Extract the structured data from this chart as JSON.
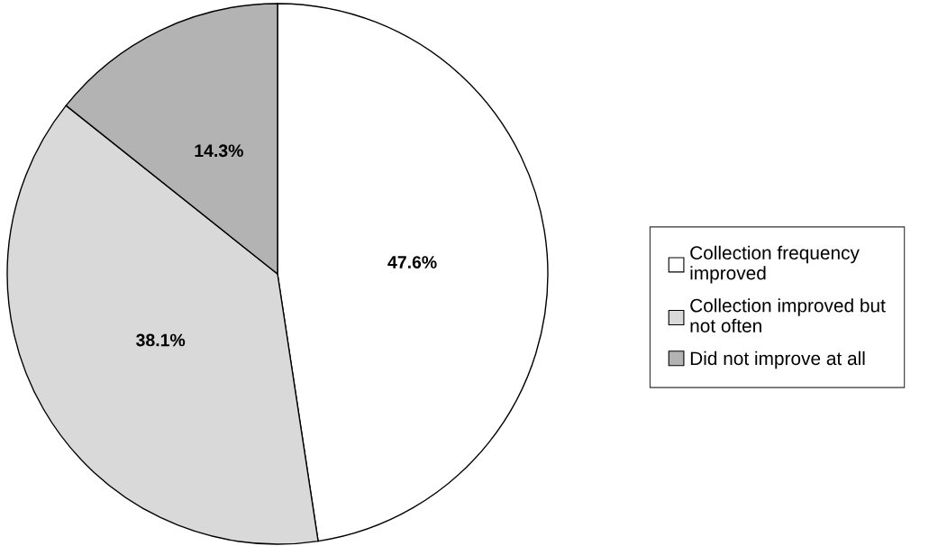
{
  "chart_data": {
    "type": "pie",
    "categories": [
      "Collection frequency\nimproved",
      "Collection improved but\nnot often",
      "Did not improve at all"
    ],
    "values": [
      47.6,
      38.1,
      14.3
    ],
    "colors": [
      "#ffffff",
      "#d9d9d9",
      "#b3b3b3"
    ],
    "value_labels": [
      "47.6%",
      "38.1%",
      "14.3%"
    ],
    "legend": "right"
  }
}
